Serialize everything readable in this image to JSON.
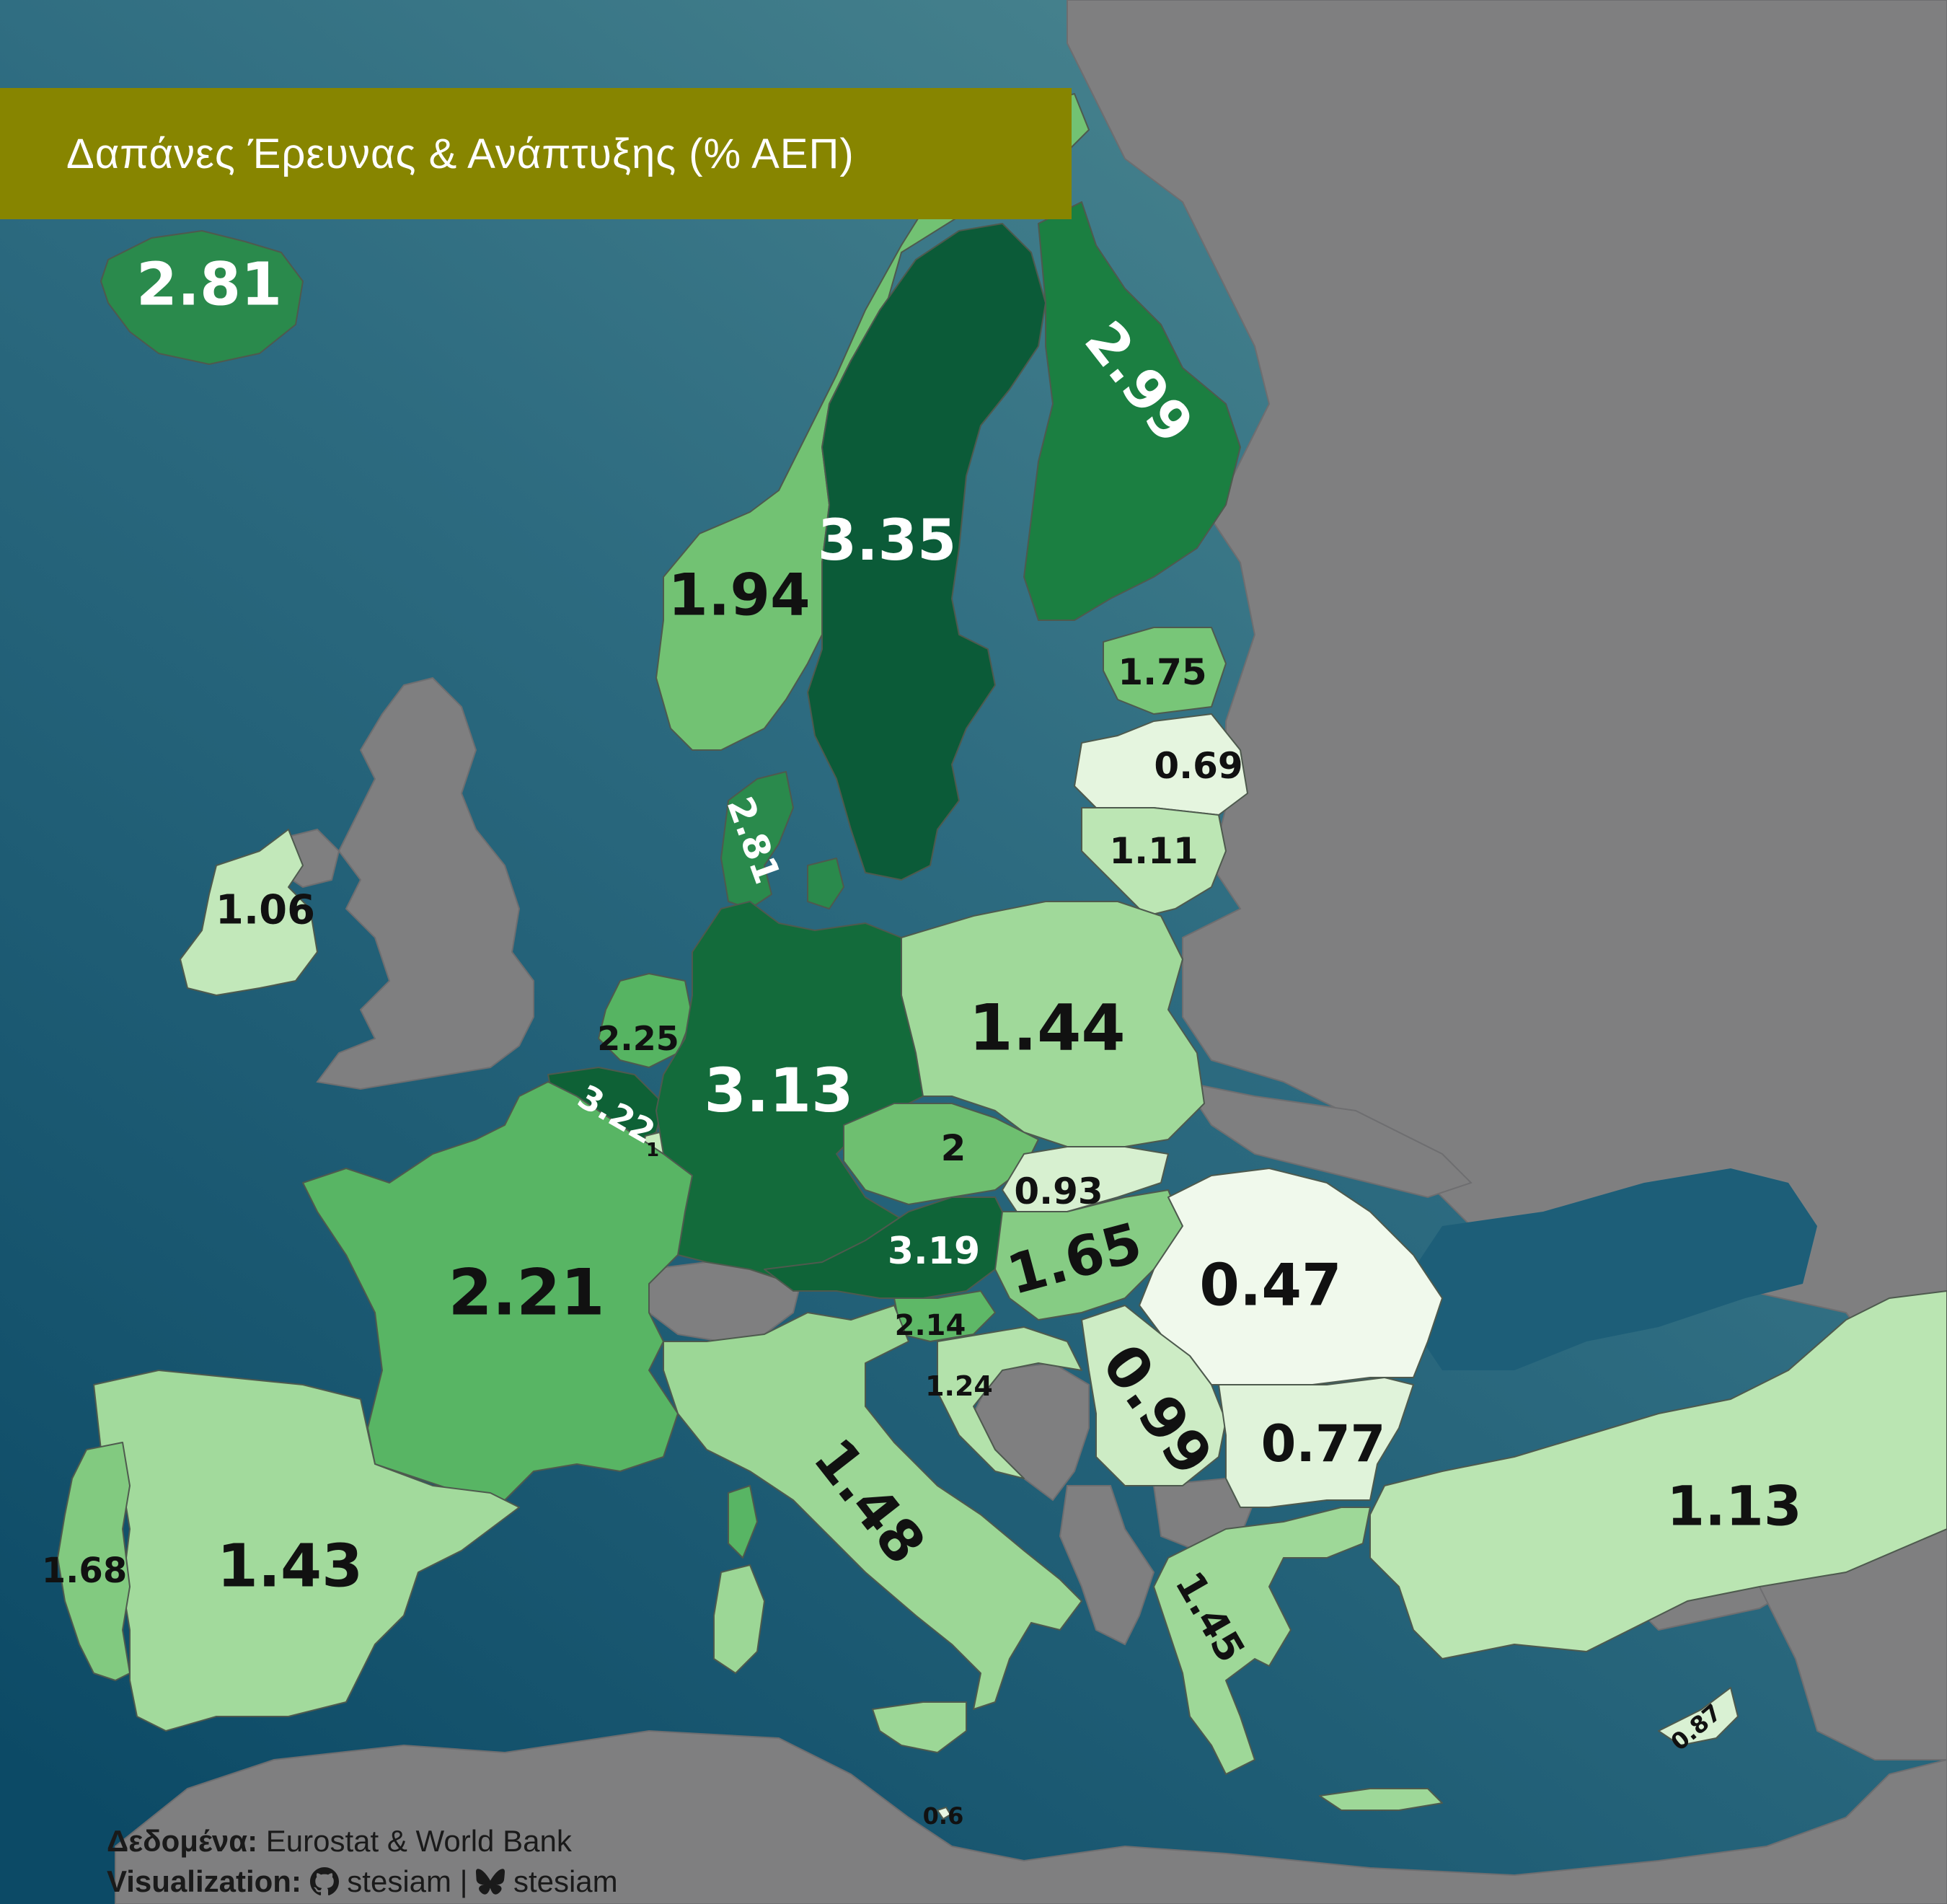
{
  "title": "Δαπάνες Έρευνας & Ανάπτυξης (% ΑΕΠ)",
  "credits": {
    "data_label": "Δεδομένα:",
    "data_source": "Eurostat & World Bank",
    "viz_label": "Visualization:",
    "github_handle": "stesiam",
    "separator": "|",
    "bluesky_handle": "stesiam"
  },
  "icons": [
    "github-icon",
    "bluesky-butterfly-icon"
  ],
  "colors": {
    "sea_light": "#4f8a92",
    "sea_dark": "#0c4a66",
    "non_data_land": "#7f7f80",
    "title_bar": "#878500"
  },
  "map_data": {
    "unit": "% of GDP",
    "countries": [
      {
        "name": "Iceland",
        "value": "2.81",
        "color": "#2a8a4c"
      },
      {
        "name": "Norway",
        "value": "1.94",
        "color": "#72c273"
      },
      {
        "name": "Sweden",
        "value": "3.35",
        "color": "#0b5b38"
      },
      {
        "name": "Finland",
        "value": "2.99",
        "color": "#1b7f41"
      },
      {
        "name": "Estonia",
        "value": "1.75",
        "color": "#78c678"
      },
      {
        "name": "Latvia",
        "value": "0.69",
        "color": "#e5f5df"
      },
      {
        "name": "Lithuania",
        "value": "1.11",
        "color": "#bce6b4"
      },
      {
        "name": "Denmark",
        "value": "2.81",
        "color": "#2a8a4c"
      },
      {
        "name": "Ireland",
        "value": "1.06",
        "color": "#c2e8ba"
      },
      {
        "name": "Netherlands",
        "value": "2.25",
        "color": "#56b462"
      },
      {
        "name": "Belgium",
        "value": "3.22",
        "color": "#0e6136"
      },
      {
        "name": "Luxembourg",
        "value": "1",
        "color": "#c6eabd"
      },
      {
        "name": "Germany",
        "value": "3.13",
        "color": "#136b3b"
      },
      {
        "name": "Poland",
        "value": "1.44",
        "color": "#a0d99a"
      },
      {
        "name": "Czechia",
        "value": "2",
        "color": "#6ebf70"
      },
      {
        "name": "Slovakia",
        "value": "0.93",
        "color": "#d7f0d0"
      },
      {
        "name": "Austria",
        "value": "3.19",
        "color": "#0f6438"
      },
      {
        "name": "Hungary",
        "value": "1.65",
        "color": "#86cc84"
      },
      {
        "name": "Romania",
        "value": "0.47",
        "color": "#f0f9ec"
      },
      {
        "name": "France",
        "value": "2.21",
        "color": "#58b564"
      },
      {
        "name": "Slovenia",
        "value": "2.14",
        "color": "#5eb867"
      },
      {
        "name": "Croatia",
        "value": "1.24",
        "color": "#b3e2ab"
      },
      {
        "name": "Serbia",
        "value": "0.99",
        "color": "#cdecc5"
      },
      {
        "name": "Bulgaria",
        "value": "0.77",
        "color": "#e0f3da"
      },
      {
        "name": "Italy",
        "value": "1.48",
        "color": "#9cd796"
      },
      {
        "name": "Spain",
        "value": "1.43",
        "color": "#a2da9c"
      },
      {
        "name": "Portugal",
        "value": "1.68",
        "color": "#82ca80"
      },
      {
        "name": "Greece",
        "value": "1.45",
        "color": "#9ed898"
      },
      {
        "name": "Turkey",
        "value": "1.13",
        "color": "#bae5b2"
      },
      {
        "name": "Cyprus",
        "value": "0.87",
        "color": "#d9f1d3"
      },
      {
        "name": "Malta",
        "value": "0.6",
        "color": "#e8f6e3"
      }
    ]
  }
}
